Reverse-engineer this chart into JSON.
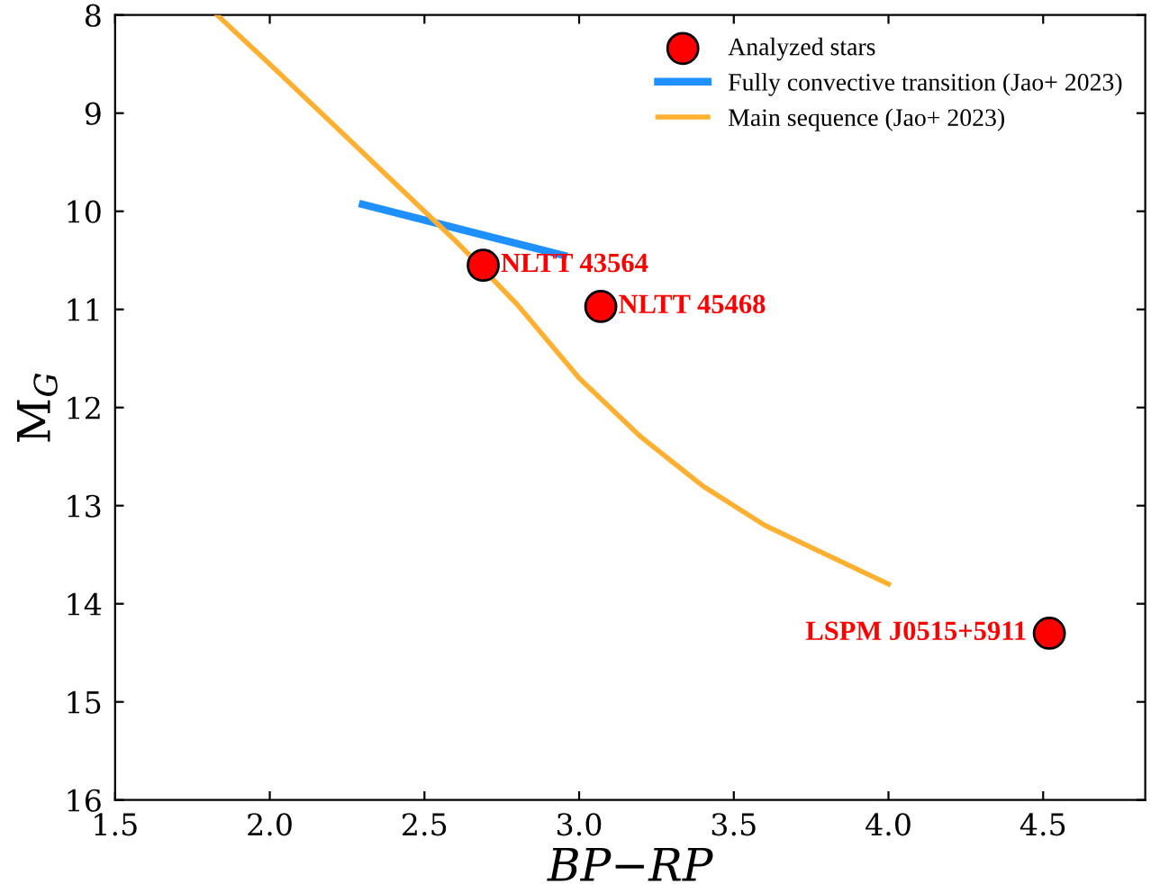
{
  "chart_data": {
    "type": "line",
    "xlabel": "BP−RP",
    "ylabel": "M$_{G}$",
    "xlim": [
      1.5,
      4.83
    ],
    "ylim": [
      16,
      8
    ],
    "xticks": [
      {
        "value": 1.5,
        "label": "1.5"
      },
      {
        "value": 2.0,
        "label": "2.0"
      },
      {
        "value": 2.5,
        "label": "2.5"
      },
      {
        "value": 3.0,
        "label": "3.0"
      },
      {
        "value": 3.5,
        "label": "3.5"
      },
      {
        "value": 4.0,
        "label": "4.0"
      },
      {
        "value": 4.5,
        "label": "4.5"
      }
    ],
    "yticks": [
      8,
      9,
      10,
      11,
      12,
      13,
      14,
      15,
      16
    ],
    "grid": false,
    "legend": "top right",
    "series": [
      {
        "name": "Analyzed stars",
        "type": "scatter",
        "marker": "circle",
        "color": "#ff0000",
        "x": [
          2.69,
          3.07,
          4.52
        ],
        "values": [
          10.55,
          10.97,
          14.3
        ],
        "value_labels": [
          "NLTT 43564",
          "NLTT 45468",
          "LSPM J0515+5911"
        ]
      },
      {
        "name": "Fully convective transition (Jao+ 2023)",
        "color": "#1e90ff",
        "x": [
          2.3,
          2.95
        ],
        "values": [
          9.93,
          10.45
        ]
      },
      {
        "name": "Main sequence (Jao+ 2023)",
        "color": "#ffb030",
        "x": [
          1.83,
          2.0,
          2.2,
          2.4,
          2.6,
          2.8,
          3.0,
          3.2,
          3.4,
          3.6,
          3.8,
          4.0
        ],
        "values": [
          8.0,
          8.5,
          9.1,
          9.7,
          10.3,
          10.95,
          11.7,
          12.3,
          12.8,
          13.2,
          13.5,
          13.8
        ]
      }
    ]
  }
}
